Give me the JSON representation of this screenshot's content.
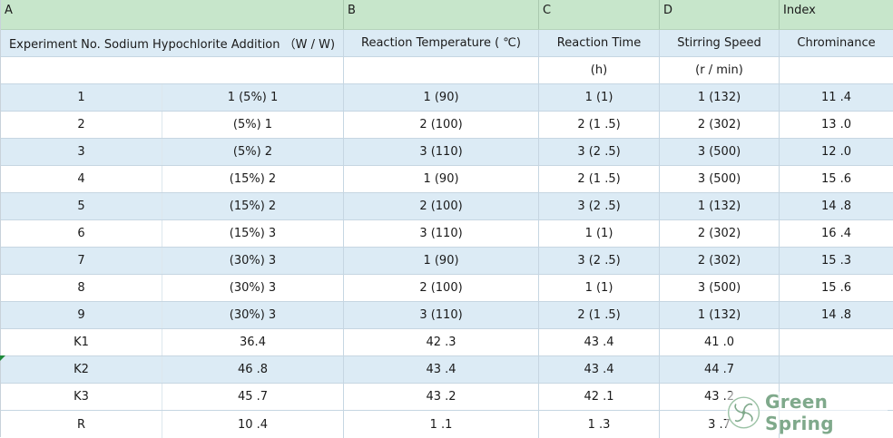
{
  "columns_letters": [
    "A",
    "B",
    "C",
    "D",
    "Index"
  ],
  "header": {
    "a": "Experiment No. Sodium Hypochlorite Addition （W / W)",
    "b": "Reaction Temperature ( ℃)",
    "c": "Reaction Time",
    "d": "Stirring Speed",
    "index": "Chrominance"
  },
  "units": {
    "c": "(h)",
    "d": "(r / min)"
  },
  "rows": [
    {
      "no": "1",
      "a": "1 (5%) 1",
      "b": "1 (90)",
      "c": "1 (1)",
      "d": "1 (132)",
      "idx": "11 .4"
    },
    {
      "no": "2",
      "a": "(5%) 1",
      "b": "2 (100)",
      "c": "2 (1 .5)",
      "d": "2 (302)",
      "idx": "13 .0"
    },
    {
      "no": "3",
      "a": "(5%) 2",
      "b": "3 (110)",
      "c": "3 (2 .5)",
      "d": "3 (500)",
      "idx": "12 .0"
    },
    {
      "no": "4",
      "a": "(15%)   2",
      "b": "1 (90)",
      "c": "2 (1 .5)",
      "d": "3 (500)",
      "idx": "15 .6"
    },
    {
      "no": "5",
      "a": "(15%)   2",
      "b": "2 (100)",
      "c": "3 (2 .5)",
      "d": "1 (132)",
      "idx": "14 .8"
    },
    {
      "no": "6",
      "a": "(15%)   3",
      "b": "3 (110)",
      "c": "1 (1)",
      "d": "2 (302)",
      "idx": "16 .4"
    },
    {
      "no": "7",
      "a": "(30%)   3",
      "b": "1 (90)",
      "c": "3 (2 .5)",
      "d": "2 (302)",
      "idx": "15 .3"
    },
    {
      "no": "8",
      "a": "(30%)   3",
      "b": "2 (100)",
      "c": "1 (1)",
      "d": "3 (500)",
      "idx": "15 .6"
    },
    {
      "no": "9",
      "a": "(30%)   3",
      "b": "3 (110)",
      "c": "2 (1 .5)",
      "d": "1 (132)",
      "idx": "14 .8"
    }
  ],
  "summary": [
    {
      "label": "K1",
      "a": "36.4",
      "b": "42 .3",
      "c": "43 .4",
      "d": "41 .0"
    },
    {
      "label": "K2",
      "a": "46 .8",
      "b": "43 .4",
      "c": "43 .4",
      "d": "44 .7"
    },
    {
      "label": "K3",
      "a": "45 .7",
      "b": "43 .2",
      "c": "42 .1",
      "d": "43 .2"
    },
    {
      "label": "R",
      "a": "10 .4",
      "b": "1 .1",
      "c": "1 .3",
      "d": "3 .7"
    }
  ],
  "watermark": {
    "text": "Green Spring",
    "icon": "green-spring-logo-icon",
    "color": "#7fa98b"
  },
  "colors": {
    "header_green": "#c7e6cb",
    "row_blue": "#dcebf5"
  }
}
